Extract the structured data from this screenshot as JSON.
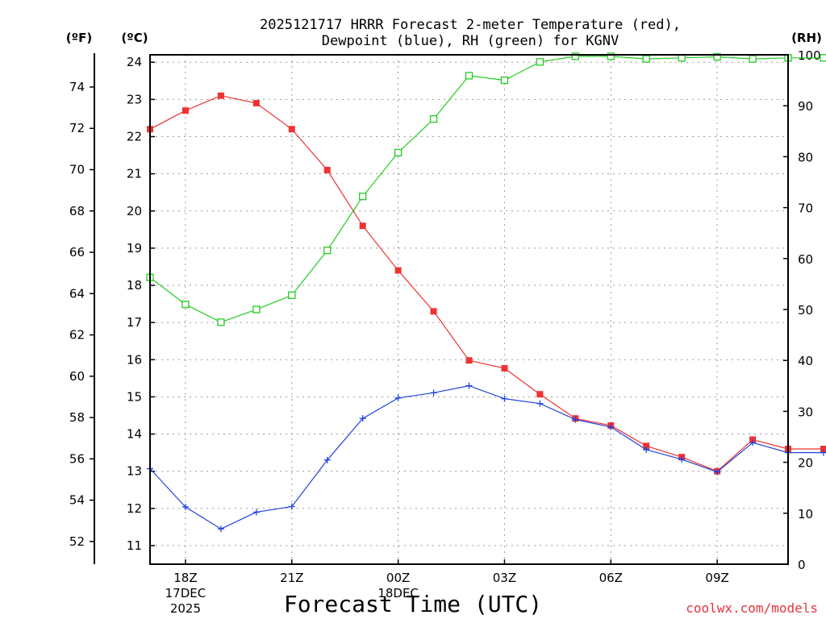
{
  "chart_data": {
    "type": "line",
    "title": [
      "2025121717 HRRR Forecast 2-meter Temperature (red),",
      "Dewpoint (blue), RH (green) for KGNV"
    ],
    "xlabel": "Forecast Time (UTC)",
    "credit": "coolwx.com/models",
    "units": {
      "fahrenheit": "(ºF)",
      "celsius": "(ºC)",
      "rh": "(RH)"
    },
    "x_hours": [
      17,
      18,
      19,
      20,
      21,
      22,
      23,
      24,
      25,
      26,
      27,
      28,
      29,
      30,
      31,
      32,
      33,
      34,
      35,
      36
    ],
    "xlim": [
      17,
      35
    ],
    "x_ticks": [
      {
        "hour": 18,
        "lines": [
          "18Z",
          "17DEC",
          "2025"
        ]
      },
      {
        "hour": 21,
        "lines": [
          "21Z"
        ]
      },
      {
        "hour": 24,
        "lines": [
          "00Z",
          "18DEC"
        ]
      },
      {
        "hour": 27,
        "lines": [
          "03Z"
        ]
      },
      {
        "hour": 30,
        "lines": [
          "06Z"
        ]
      },
      {
        "hour": 33,
        "lines": [
          "09Z"
        ]
      }
    ],
    "celsius_axis": {
      "range": [
        10.5,
        24.2
      ],
      "ticks": [
        11,
        12,
        13,
        14,
        15,
        16,
        17,
        18,
        19,
        20,
        21,
        22,
        23,
        24
      ]
    },
    "fahrenheit_ticks": [
      52,
      54,
      56,
      58,
      60,
      62,
      64,
      66,
      68,
      70,
      72,
      74
    ],
    "rh_axis": {
      "range": [
        0,
        100
      ],
      "ticks": [
        0,
        10,
        20,
        30,
        40,
        50,
        60,
        70,
        80,
        90,
        100
      ]
    },
    "series": [
      {
        "name": "2-meter Temperature",
        "color": "#ee3333",
        "axis": "celsius",
        "marker": "filled-square",
        "values": [
          22.2,
          22.7,
          23.1,
          22.9,
          22.2,
          21.1,
          19.6,
          18.4,
          17.3,
          15.98,
          15.77,
          15.07,
          14.42,
          14.23,
          13.68,
          13.38,
          13.0,
          13.85,
          13.6,
          13.6
        ]
      },
      {
        "name": "Dewpoint",
        "color": "#2244dd",
        "axis": "celsius",
        "marker": "plus",
        "values": [
          13.07,
          12.04,
          11.45,
          11.9,
          12.05,
          13.3,
          14.42,
          14.97,
          15.11,
          15.3,
          14.95,
          14.82,
          14.39,
          14.19,
          13.58,
          13.32,
          12.98,
          13.77,
          13.5,
          13.5
        ]
      },
      {
        "name": "RH",
        "color": "#22cc22",
        "axis": "rh",
        "marker": "open-square",
        "values": [
          56.3,
          51.0,
          47.5,
          50.0,
          52.8,
          61.6,
          72.2,
          80.8,
          87.4,
          95.9,
          95.0,
          98.6,
          99.7,
          99.7,
          99.2,
          99.4,
          99.6,
          99.2,
          99.4,
          99.4
        ]
      }
    ]
  }
}
